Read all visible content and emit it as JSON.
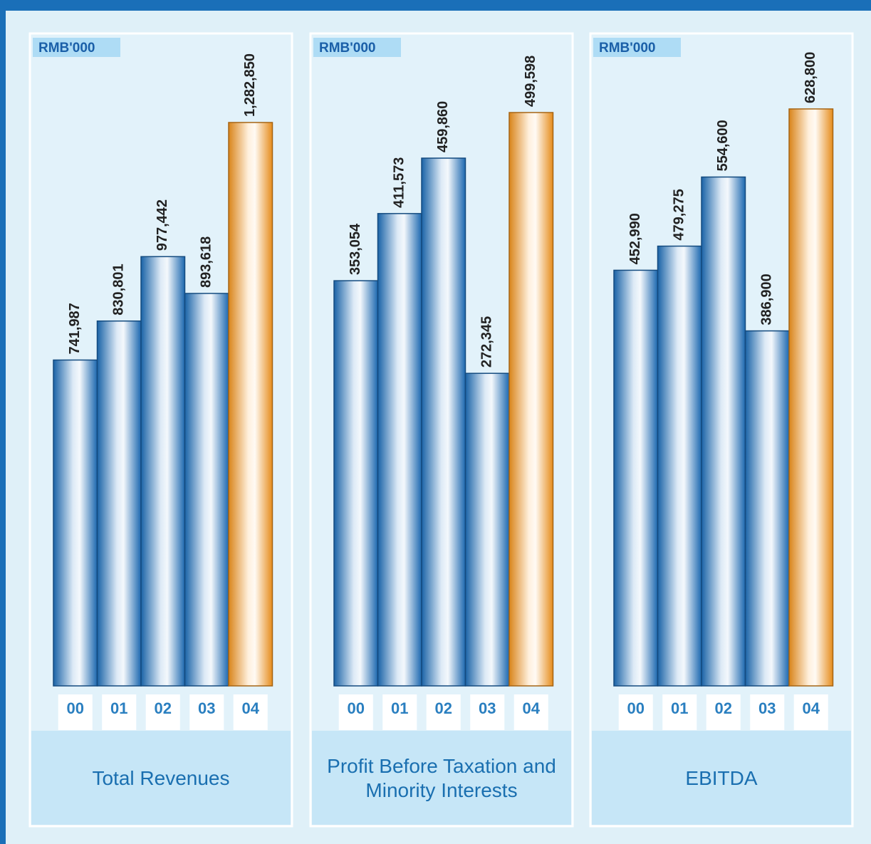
{
  "chart_data": [
    {
      "type": "bar",
      "title": "Total Revenues",
      "unit": "RMB'000",
      "categories": [
        "00",
        "01",
        "02",
        "03",
        "04"
      ],
      "values": [
        741987,
        830801,
        977442,
        893618,
        1282850
      ],
      "value_labels": [
        "741,987",
        "830,801",
        "977,442",
        "893,618",
        "1,282,850"
      ],
      "colors": [
        "#1f74c4",
        "#1f74c4",
        "#1f74c4",
        "#1f74c4",
        "#ff9b1e"
      ],
      "ylim": [
        0,
        1399600
      ]
    },
    {
      "type": "bar",
      "title": "Profit Before Taxation and Minority Interests",
      "unit": "RMB'000",
      "categories": [
        "00",
        "01",
        "02",
        "03",
        "04"
      ],
      "values": [
        353054,
        411573,
        459860,
        272345,
        499598
      ],
      "value_labels": [
        "353,054",
        "411,573",
        "459,860",
        "272,345",
        "499,598"
      ],
      "colors": [
        "#1f74c4",
        "#1f74c4",
        "#1f74c4",
        "#1f74c4",
        "#ff9b1e"
      ],
      "ylim": [
        0,
        535600
      ]
    },
    {
      "type": "bar",
      "title": "EBITDA",
      "unit": "RMB'000",
      "categories": [
        "00",
        "01",
        "02",
        "03",
        "04"
      ],
      "values": [
        452990,
        479275,
        554600,
        386900,
        628800
      ],
      "value_labels": [
        "452,990",
        "479,275",
        "554,600",
        "386,900",
        "628,800"
      ],
      "colors": [
        "#1f74c4",
        "#1f74c4",
        "#1f74c4",
        "#1f74c4",
        "#ff9b1e"
      ],
      "ylim": [
        0,
        669900
      ]
    }
  ]
}
